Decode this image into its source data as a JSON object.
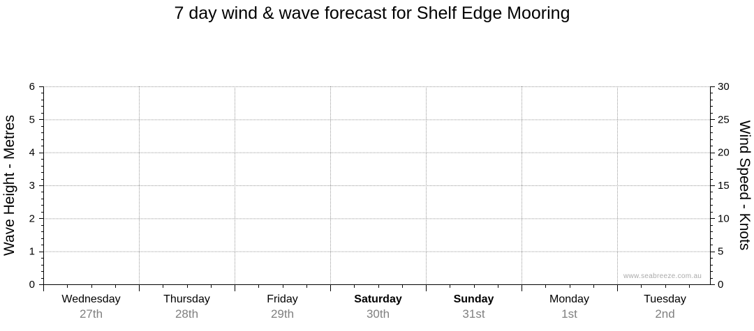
{
  "title": "7 day wind & wave forecast for Shelf Edge Mooring",
  "watermark": "www.seabreeze.com.au",
  "chart_data": {
    "type": "line",
    "title": "7 day wind & wave forecast for Shelf Edge Mooring",
    "ylabel_left": "Wave Height - Metres",
    "ylabel_right": "Wind Speed - Knots",
    "ylim_left": [
      0,
      6
    ],
    "ylim_right": [
      0,
      30
    ],
    "yticks_left": [
      0,
      1,
      2,
      3,
      4,
      5,
      6
    ],
    "yticks_right": [
      0,
      5,
      10,
      15,
      20,
      25,
      30
    ],
    "grid": true,
    "days": [
      {
        "name": "Wednesday",
        "date": "27th",
        "bold": false
      },
      {
        "name": "Thursday",
        "date": "28th",
        "bold": false
      },
      {
        "name": "Friday",
        "date": "29th",
        "bold": false
      },
      {
        "name": "Saturday",
        "date": "30th",
        "bold": true
      },
      {
        "name": "Sunday",
        "date": "31st",
        "bold": true
      },
      {
        "name": "Monday",
        "date": "1st",
        "bold": false
      },
      {
        "name": "Tuesday",
        "date": "2nd",
        "bold": false
      }
    ],
    "series": []
  },
  "colors": {
    "axis": "#000000",
    "grid": "#999999",
    "date_text": "#808080",
    "watermark": "#aaaaaa"
  }
}
